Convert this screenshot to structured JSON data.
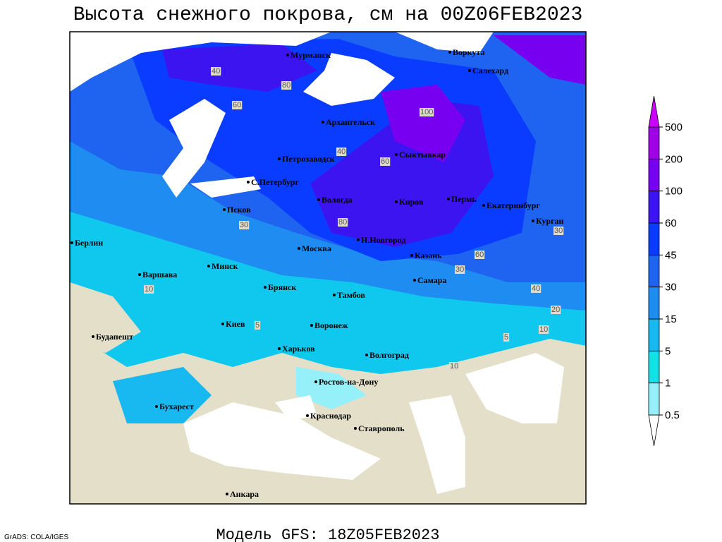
{
  "title": "Высота снежного покрова, см на 00Z06FEB2023",
  "footer": "Модель GFS: 18Z05FEB2023",
  "credit": "GrADS: COLA/IGES",
  "colorbar": {
    "levels": [
      0.5,
      1,
      5,
      15,
      30,
      45,
      60,
      100,
      200,
      500
    ],
    "colors": [
      "#ffffff",
      "#96f0fa",
      "#14e1e6",
      "#18b9f0",
      "#1e8cf0",
      "#1e64f0",
      "#0a3cff",
      "#3c14f0",
      "#7800f0",
      "#a000e6",
      "#cc00ff"
    ]
  },
  "cities": [
    "Мурманск",
    "Воркута",
    "Салехард",
    "Архангельск",
    "Сыктывкар",
    "Петрозаводск",
    "С.Петербург",
    "Вологда",
    "Киров",
    "Пермь",
    "Екатеринбург",
    "Курган",
    "Псков",
    "Москва",
    "Н.Новгород",
    "Казань",
    "Берлин",
    "Варшава",
    "Минск",
    "Брянск",
    "Тамбов",
    "Самара",
    "Киев",
    "Воронеж",
    "Будапешт",
    "Харьков",
    "Волгоград",
    "Ростов-на-Дону",
    "Бухарест",
    "Краснодар",
    "Ставрополь",
    "Анкара"
  ],
  "contour_labels": [
    "40",
    "80",
    "60",
    "100",
    "40",
    "60",
    "80",
    "30",
    "10",
    "5",
    "20",
    "10",
    "30",
    "60",
    "5",
    "10",
    "40",
    "30"
  ]
}
